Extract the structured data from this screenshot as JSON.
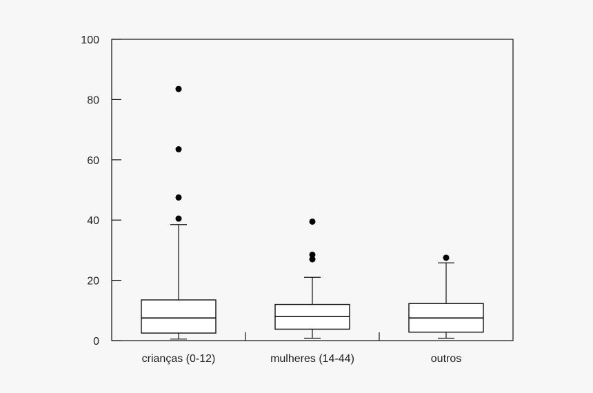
{
  "chart_data": {
    "type": "box",
    "categories": [
      "crianças (0-12)",
      "mulheres (14-44)",
      "outros"
    ],
    "boxes": [
      {
        "category": "crianças (0-12)",
        "min": 0.5,
        "q1": 2.5,
        "median": 7.5,
        "q3": 13.5,
        "max": 38.5,
        "outliers": [
          40.5,
          47.5,
          63.5,
          83.5
        ]
      },
      {
        "category": "mulheres (14-44)",
        "min": 0.8,
        "q1": 3.8,
        "median": 8.0,
        "q3": 12.0,
        "max": 21.0,
        "outliers": [
          27.0,
          28.5,
          39.5
        ]
      },
      {
        "category": "outros",
        "min": 0.8,
        "q1": 2.8,
        "median": 7.5,
        "q3": 12.3,
        "max": 25.8,
        "outliers": [
          27.5
        ]
      }
    ],
    "ylim": [
      0,
      100
    ],
    "yticks": [
      0,
      20,
      40,
      60,
      80,
      100
    ],
    "ytick_labels": [
      "0",
      "20",
      "40",
      "60",
      "80",
      "100"
    ],
    "grid": false,
    "colors": {
      "box_fill": "#ffffff",
      "stroke": "#111111",
      "outlier": "#000000",
      "background": "#f7f7f7"
    }
  }
}
